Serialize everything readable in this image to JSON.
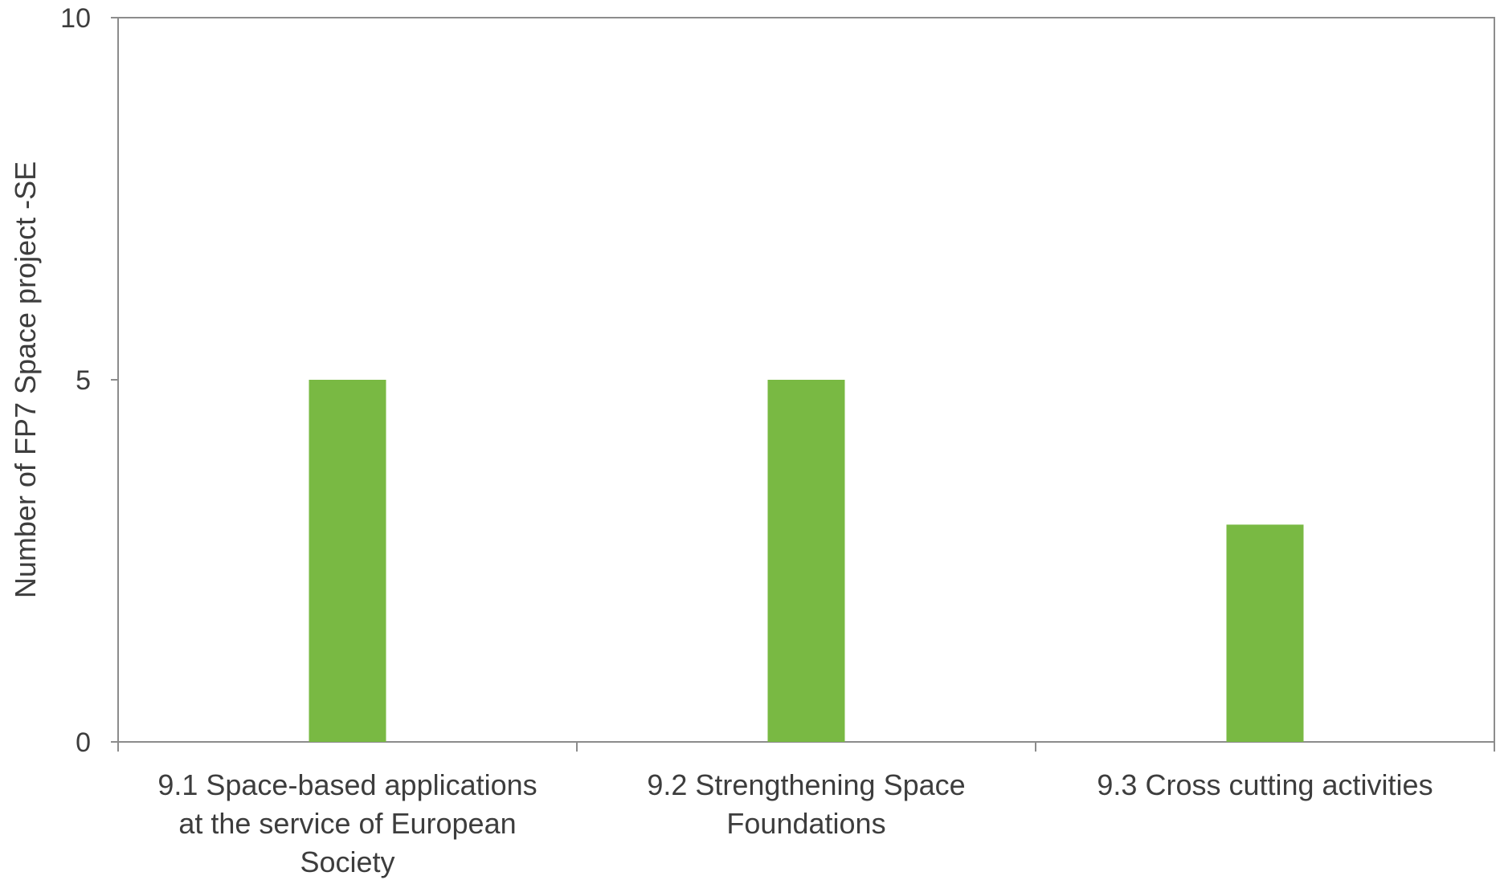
{
  "chart_data": {
    "type": "bar",
    "categories": [
      [
        "9.1 Space-based applications",
        "at the service of European",
        "Society"
      ],
      [
        "9.2 Strengthening Space",
        "Foundations"
      ],
      [
        "9.3 Cross cutting activities"
      ]
    ],
    "values": [
      5,
      5,
      3
    ],
    "ylabel": "Number of FP7 Space project -SE",
    "xlabel": "",
    "ylim": [
      0,
      10
    ],
    "yticks": [
      "0",
      "5",
      "10"
    ],
    "grid": false,
    "bar_color": "#79b943",
    "axis_color": "#8c8c8c"
  }
}
